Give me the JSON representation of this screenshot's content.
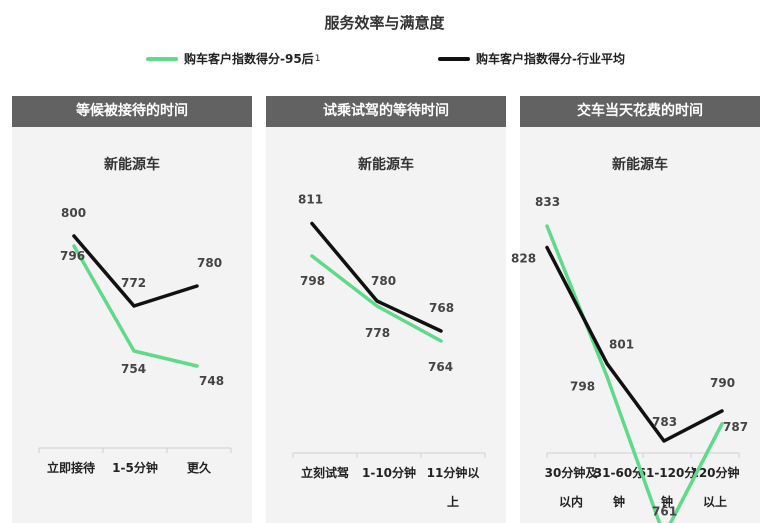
{
  "title": "服务效率与满意度",
  "legend": [
    {
      "label": "购车客户指数得分-95后",
      "sup": "1",
      "color": "#5fd98a"
    },
    {
      "label": "购车客户指数得分-行业平均",
      "sup": "",
      "color": "#111111"
    }
  ],
  "colors": {
    "young": "#5fd98a",
    "avg": "#111111",
    "header": "#626262",
    "panel": "#f3f3f3"
  },
  "chart_data": [
    {
      "type": "line",
      "title": "等候被接待的时间",
      "subtitle": "新能源车",
      "categories": [
        [
          "立即接待"
        ],
        [
          "1-5分钟"
        ],
        [
          "更久"
        ]
      ],
      "series": [
        {
          "name": "购车客户指数得分-95后",
          "values": [
            796,
            754,
            748
          ]
        },
        {
          "name": "购车客户指数得分-行业平均",
          "values": [
            800,
            772,
            780
          ]
        }
      ]
    },
    {
      "type": "line",
      "title": "试乘试驾的等待时间",
      "subtitle": "新能源车",
      "categories": [
        [
          "立刻试驾"
        ],
        [
          "1-10分钟"
        ],
        [
          "11分钟以",
          "上"
        ]
      ],
      "series": [
        {
          "name": "购车客户指数得分-95后",
          "values": [
            798,
            778,
            764
          ]
        },
        {
          "name": "购车客户指数得分-行业平均",
          "values": [
            811,
            780,
            768
          ]
        }
      ]
    },
    {
      "type": "line",
      "title": "交车当天花费的时间",
      "subtitle": "新能源车",
      "categories": [
        [
          "30分钟及",
          "以内"
        ],
        [
          "31-60分",
          "钟"
        ],
        [
          "61-120分",
          "钟"
        ],
        [
          "120分钟",
          "以上"
        ]
      ],
      "series": [
        {
          "name": "购车客户指数得分-95后",
          "values": [
            833,
            798,
            761,
            787
          ]
        },
        {
          "name": "购车客户指数得分-行业平均",
          "values": [
            828,
            801,
            783,
            790
          ]
        }
      ]
    }
  ]
}
